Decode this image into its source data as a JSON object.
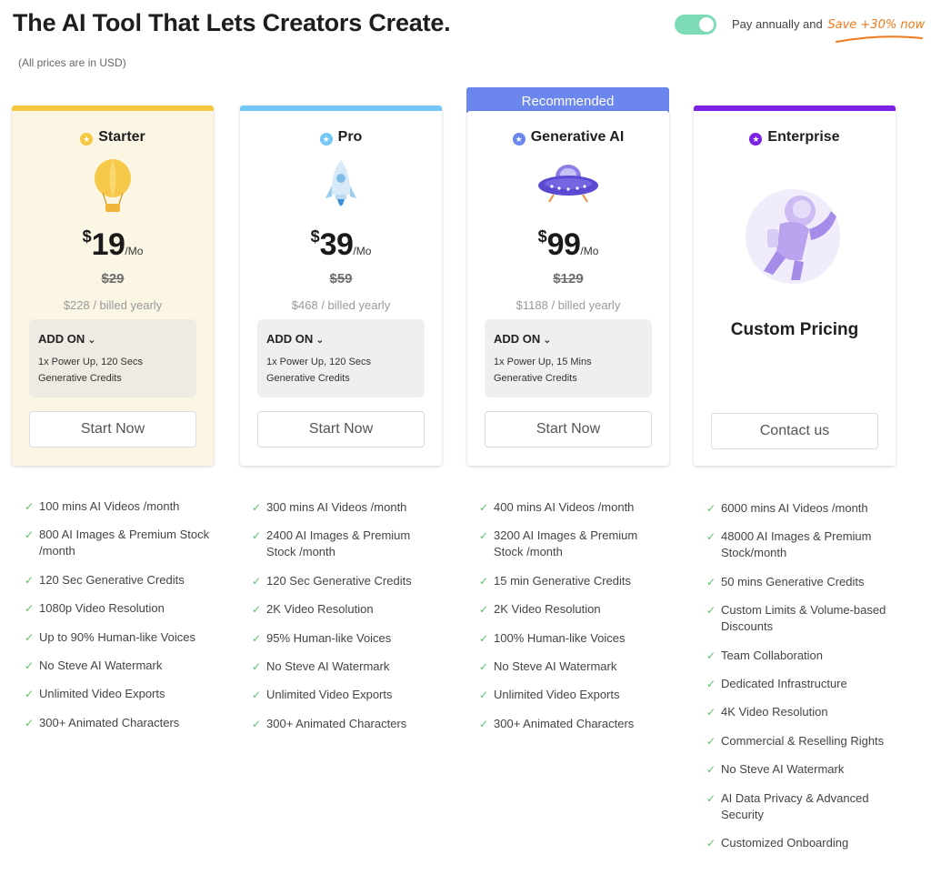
{
  "header": {
    "title": "The AI Tool That Lets Creators Create.",
    "note": "(All prices are in USD)"
  },
  "billing": {
    "label": "Pay annually and",
    "save": "Save +30% now",
    "toggle_on": true
  },
  "colors": {
    "starter": "#f5c842",
    "pro": "#74c8f3",
    "generative": "#6b86ec",
    "enterprise": "#7b22e4",
    "check": "#5cc36a"
  },
  "plans": [
    {
      "name": "Starter",
      "icon": "hot-air-balloon-icon",
      "currency": "$",
      "price": "19",
      "per": "/Mo",
      "old_price": "$29",
      "billed": "$228 / billed yearly",
      "addon_label": "ADD ON",
      "addon_desc": "1x Power Up, 120 Secs Generative Credits",
      "cta": "Start Now",
      "features": [
        "100 mins AI Videos /month",
        "800 AI Images & Premium Stock /month",
        "120 Sec Generative Credits",
        "1080p Video Resolution",
        "Up to 90% Human-like Voices",
        "No Steve AI Watermark",
        "Unlimited Video Exports",
        "300+ Animated Characters"
      ]
    },
    {
      "name": "Pro",
      "icon": "rocket-icon",
      "currency": "$",
      "price": "39",
      "per": "/Mo",
      "old_price": "$59",
      "billed": "$468 / billed yearly",
      "addon_label": "ADD ON",
      "addon_desc": "1x Power Up, 120 Secs Generative Credits",
      "cta": "Start Now",
      "features": [
        "300 mins AI Videos /month",
        "2400 AI Images & Premium Stock /month",
        "120 Sec Generative Credits",
        "2K Video Resolution",
        "95% Human-like Voices",
        "No Steve AI Watermark",
        "Unlimited Video Exports",
        "300+ Animated Characters"
      ]
    },
    {
      "name": "Generative AI",
      "badge": "Recommended",
      "icon": "ufo-icon",
      "currency": "$",
      "price": "99",
      "per": "/Mo",
      "old_price": "$129",
      "billed": "$1188 / billed yearly",
      "addon_label": "ADD ON",
      "addon_desc": "1x Power Up, 15 Mins Generative Credits",
      "cta": "Start Now",
      "features": [
        "400 mins AI Videos /month",
        "3200 AI Images & Premium Stock /month",
        "15 min Generative Credits",
        "2K Video Resolution",
        "100% Human-like Voices",
        "No Steve AI Watermark",
        "Unlimited Video Exports",
        "300+ Animated Characters"
      ]
    },
    {
      "name": "Enterprise",
      "icon": "astronaut-icon",
      "custom": "Custom Pricing",
      "cta": "Contact us",
      "features": [
        "6000 mins AI Videos /month",
        "48000 AI Images & Premium Stock/month",
        "50 mins Generative Credits",
        "Custom Limits & Volume-based Discounts",
        "Team Collaboration",
        "Dedicated Infrastructure",
        "4K Video Resolution",
        "Commercial & Reselling Rights",
        "No Steve AI Watermark",
        "AI Data Privacy & Advanced Security",
        "Customized Onboarding"
      ]
    }
  ]
}
